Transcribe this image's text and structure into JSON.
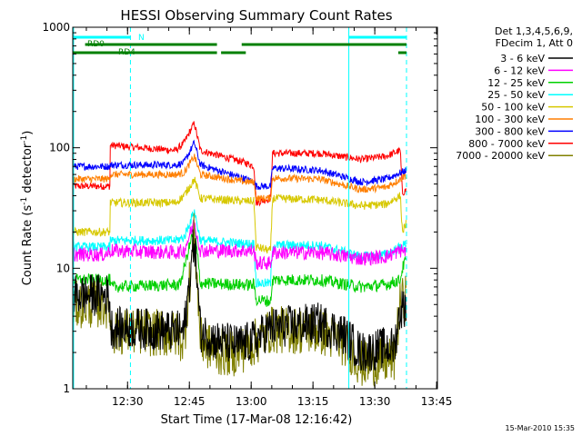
{
  "chart_data": {
    "type": "line",
    "title": "HESSI Observing Summary Count Rates",
    "xlabel": "Start Time (17-Mar-08 12:16:42)",
    "ylabel_main": "Count Rate (s",
    "ylabel_sup1": "-1",
    "ylabel_mid": " detector",
    "ylabel_sup2": "-1",
    "ylabel_end": ")",
    "y_scale": "log",
    "ylim": [
      1,
      1000
    ],
    "xlim_minutes": [
      0,
      84
    ],
    "x_ticks": [
      {
        "label": "12:30",
        "minutes": 13.3
      },
      {
        "label": "12:45",
        "minutes": 28.3
      },
      {
        "label": "13:00",
        "minutes": 43.3
      },
      {
        "label": "13:15",
        "minutes": 58.3
      },
      {
        "label": "13:30",
        "minutes": 73.3
      },
      {
        "label": "13:45",
        "minutes": 88.3
      }
    ],
    "y_ticks": [
      {
        "label": "1",
        "value": 1
      },
      {
        "label": "10",
        "value": 10
      },
      {
        "label": "100",
        "value": 100
      },
      {
        "label": "1000",
        "value": 1000
      }
    ],
    "legend_header": [
      "Det 1,3,4,5,6,9,",
      "FDecim 1, Att 0"
    ],
    "series": [
      {
        "name": "3 - 6 keV",
        "color": "#000000",
        "base": [
          [
            0,
            6
          ],
          [
            9,
            6
          ],
          [
            9,
            3.2
          ],
          [
            15,
            3.2
          ],
          [
            24,
            3
          ],
          [
            27,
            3
          ],
          [
            29.5,
            18
          ],
          [
            31,
            3
          ],
          [
            35,
            2.5
          ],
          [
            40,
            2.3
          ],
          [
            44,
            2.5
          ],
          [
            48,
            3.2
          ],
          [
            60,
            3.5
          ],
          [
            66,
            2.8
          ],
          [
            70,
            2
          ],
          [
            76,
            2.2
          ],
          [
            78,
            2.2
          ],
          [
            79.5,
            4.5
          ],
          [
            81,
            5
          ]
        ],
        "flare": 22,
        "noise": 0.35
      },
      {
        "name": "6 - 12 keV",
        "color": "#ff00ff",
        "base": [
          [
            0,
            13
          ],
          [
            8,
            13
          ],
          [
            9,
            14
          ],
          [
            25,
            13.5
          ],
          [
            27,
            14
          ],
          [
            29.5,
            24
          ],
          [
            31,
            14
          ],
          [
            40,
            14
          ],
          [
            44,
            14
          ],
          [
            44.5,
            11
          ],
          [
            48,
            11
          ],
          [
            48.5,
            13.5
          ],
          [
            60,
            13.5
          ],
          [
            70,
            12
          ],
          [
            76,
            12.5
          ],
          [
            79.5,
            14
          ],
          [
            81,
            14
          ]
        ],
        "flare": 24,
        "noise": 0.12
      },
      {
        "name": "12 - 25 keV",
        "color": "#00d000",
        "base": [
          [
            0,
            8
          ],
          [
            9,
            8
          ],
          [
            9,
            7
          ],
          [
            20,
            7.2
          ],
          [
            26,
            7.3
          ],
          [
            29.5,
            22
          ],
          [
            31,
            7.5
          ],
          [
            42,
            7.3
          ],
          [
            44,
            7.3
          ],
          [
            44.5,
            5.5
          ],
          [
            48,
            5.3
          ],
          [
            48.5,
            8
          ],
          [
            60,
            8
          ],
          [
            70,
            7
          ],
          [
            76,
            7.3
          ],
          [
            79.5,
            8
          ],
          [
            80,
            10
          ],
          [
            81,
            12
          ]
        ],
        "flare": 22,
        "noise": 0.1
      },
      {
        "name": "25 - 50 keV",
        "color": "#00ffff",
        "base": [
          [
            0,
            15
          ],
          [
            9,
            15
          ],
          [
            9,
            17
          ],
          [
            25,
            17
          ],
          [
            27,
            18
          ],
          [
            29.5,
            30
          ],
          [
            31,
            17
          ],
          [
            42,
            16
          ],
          [
            44,
            16
          ],
          [
            44.5,
            7.5
          ],
          [
            48,
            7.5
          ],
          [
            48.5,
            15.5
          ],
          [
            60,
            15.5
          ],
          [
            70,
            12.5
          ],
          [
            76,
            13
          ],
          [
            79.5,
            15
          ],
          [
            81,
            16
          ]
        ],
        "flare": 30,
        "noise": 0.08
      },
      {
        "name": "50 - 100 keV",
        "color": "#d7c800",
        "base": [
          [
            0,
            20
          ],
          [
            9,
            20
          ],
          [
            9,
            35
          ],
          [
            25,
            35
          ],
          [
            27,
            40
          ],
          [
            29.5,
            55
          ],
          [
            31,
            38
          ],
          [
            42,
            36
          ],
          [
            44,
            36
          ],
          [
            44.5,
            15
          ],
          [
            48,
            14
          ],
          [
            48.5,
            38
          ],
          [
            60,
            37
          ],
          [
            70,
            33
          ],
          [
            76,
            34
          ],
          [
            79.5,
            40
          ],
          [
            80,
            20
          ],
          [
            81,
            24
          ]
        ],
        "flare": 55,
        "noise": 0.07
      },
      {
        "name": "100 - 300 keV",
        "color": "#ff7f00",
        "base": [
          [
            0,
            55
          ],
          [
            9,
            55
          ],
          [
            9,
            60
          ],
          [
            25,
            60
          ],
          [
            27,
            62
          ],
          [
            29.5,
            85
          ],
          [
            31,
            60
          ],
          [
            42,
            52
          ],
          [
            44,
            52
          ],
          [
            44.5,
            38
          ],
          [
            48,
            38
          ],
          [
            48.5,
            56
          ],
          [
            60,
            55
          ],
          [
            70,
            45
          ],
          [
            76,
            47
          ],
          [
            79.5,
            55
          ],
          [
            81,
            60
          ]
        ],
        "flare": 85,
        "noise": 0.06
      },
      {
        "name": "300 - 800 keV",
        "color": "#0000ff",
        "base": [
          [
            0,
            70
          ],
          [
            9,
            70
          ],
          [
            9,
            72
          ],
          [
            25,
            72
          ],
          [
            27,
            75
          ],
          [
            29.5,
            110
          ],
          [
            31,
            72
          ],
          [
            42,
            55
          ],
          [
            44,
            52
          ],
          [
            44.5,
            48
          ],
          [
            48,
            48
          ],
          [
            48.5,
            68
          ],
          [
            60,
            65
          ],
          [
            70,
            52
          ],
          [
            76,
            55
          ],
          [
            79.5,
            62
          ],
          [
            81,
            65
          ]
        ],
        "flare": 110,
        "noise": 0.06
      },
      {
        "name": "800 - 7000 keV",
        "color": "#ff0000",
        "base": [
          [
            0,
            48
          ],
          [
            9,
            48
          ],
          [
            9,
            105
          ],
          [
            25,
            95
          ],
          [
            27,
            110
          ],
          [
            29.5,
            160
          ],
          [
            31,
            95
          ],
          [
            42,
            75
          ],
          [
            44,
            70
          ],
          [
            44.5,
            35
          ],
          [
            48,
            38
          ],
          [
            48.5,
            90
          ],
          [
            60,
            90
          ],
          [
            70,
            80
          ],
          [
            76,
            85
          ],
          [
            79.5,
            95
          ],
          [
            80,
            42
          ],
          [
            81,
            45
          ]
        ],
        "flare": 160,
        "noise": 0.06
      },
      {
        "name": "7000 - 20000 keV",
        "color": "#808000",
        "base": [
          [
            0,
            5
          ],
          [
            9,
            5
          ],
          [
            9,
            3
          ],
          [
            15,
            3
          ],
          [
            25,
            2.8
          ],
          [
            27,
            2.5
          ],
          [
            29.5,
            20
          ],
          [
            31,
            2.5
          ],
          [
            35,
            2
          ],
          [
            40,
            2
          ],
          [
            44,
            2.4
          ],
          [
            48,
            3.1
          ],
          [
            60,
            3
          ],
          [
            66,
            2.4
          ],
          [
            70,
            1.6
          ],
          [
            76,
            1.7
          ],
          [
            78,
            1.8
          ],
          [
            79.5,
            5
          ],
          [
            81,
            6
          ]
        ],
        "flare": 20,
        "noise": 0.4
      }
    ],
    "flags": [
      {
        "label": "N",
        "color": "#00ffff",
        "segments": [
          [
            0,
            14
          ],
          [
            67,
            81
          ]
        ]
      },
      {
        "label": "RD0",
        "color": "#008000",
        "segments": [
          [
            3,
            35
          ],
          [
            41,
            81
          ]
        ]
      },
      {
        "label": "RD4",
        "color": "#008000",
        "segments": [
          [
            0,
            35
          ],
          [
            36,
            42
          ],
          [
            79,
            81
          ]
        ]
      }
    ],
    "vertical_lines": [
      {
        "minutes": 0.2,
        "style": "solid",
        "color": "#00ffff"
      },
      {
        "minutes": 14,
        "style": "dashed",
        "color": "#00ffff"
      },
      {
        "minutes": 67,
        "style": "solid",
        "color": "#00ffff"
      },
      {
        "minutes": 81,
        "style": "dashed",
        "color": "#00ffff"
      }
    ]
  },
  "footer": {
    "timestamp": "15-Mar-2010 15:35"
  }
}
